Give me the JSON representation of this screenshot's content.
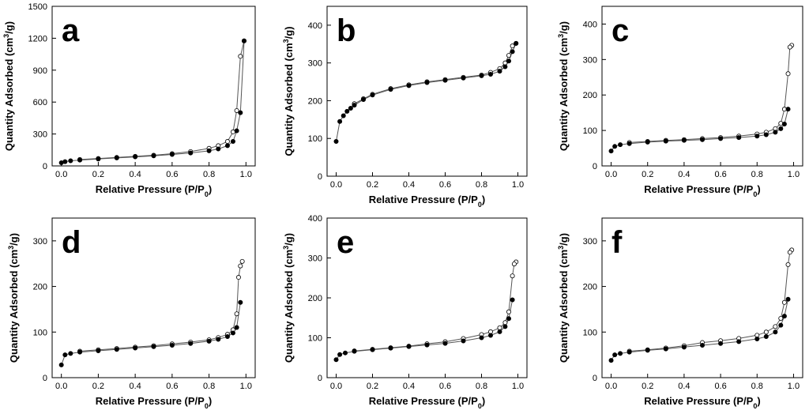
{
  "figure": {
    "description_panels": [
      "a",
      "b",
      "c",
      "d",
      "e",
      "f"
    ]
  },
  "colors": {
    "adsorption_marker": "#000000",
    "desorption_marker": "#ffffff",
    "line": "#555555",
    "frame": "#000000"
  },
  "chart_data": [
    {
      "type": "scatter",
      "panel_label": "a",
      "xlabel": "Relative Pressure (P/P0)",
      "xlabel_main": "Relative Pressure (P/P",
      "xlabel_sub": "0",
      "xlabel_close": ")",
      "ylabel": "Quantity Adsorbed (cm3/g)",
      "ylabel_main": "Quantity Adsorbed (cm",
      "ylabel_sup": "3",
      "ylabel_tail": "/g)",
      "xlim": [
        -0.05,
        1.05
      ],
      "ylim": [
        0,
        1500
      ],
      "xticks": [
        0.0,
        0.2,
        0.4,
        0.6,
        0.8,
        1.0
      ],
      "xtick_labels": [
        "0.0",
        "0.2",
        "0.4",
        "0.6",
        "0.8",
        "1.0"
      ],
      "yticks": [
        0,
        300,
        600,
        900,
        1200,
        1500
      ],
      "ytick_labels": [
        "0",
        "300",
        "600",
        "900",
        "1200",
        "1500"
      ],
      "series": [
        {
          "name": "adsorption",
          "marker": "filled",
          "x": [
            0.0,
            0.02,
            0.05,
            0.1,
            0.2,
            0.3,
            0.4,
            0.5,
            0.6,
            0.7,
            0.8,
            0.85,
            0.9,
            0.93,
            0.95,
            0.97,
            0.99
          ],
          "y": [
            30,
            40,
            48,
            55,
            65,
            75,
            85,
            95,
            108,
            122,
            142,
            160,
            190,
            230,
            330,
            500,
            1175
          ]
        },
        {
          "name": "desorption",
          "marker": "open",
          "x": [
            0.99,
            0.97,
            0.95,
            0.93,
            0.9,
            0.85,
            0.8,
            0.7,
            0.6,
            0.5,
            0.4,
            0.3,
            0.2,
            0.1
          ],
          "y": [
            1175,
            1030,
            520,
            320,
            230,
            190,
            165,
            135,
            115,
            100,
            90,
            80,
            70,
            60
          ]
        }
      ]
    },
    {
      "type": "scatter",
      "panel_label": "b",
      "xlabel": "Relative Pressure (P/P0)",
      "xlabel_main": "Relative Pressure (P/P",
      "xlabel_sub": "0",
      "xlabel_close": ")",
      "ylabel": "Quantity Adsorbed (cm3/g)",
      "ylabel_main": "Quantity Adsorbed (cm",
      "ylabel_sup": "3",
      "ylabel_tail": "/g)",
      "xlim": [
        -0.05,
        1.05
      ],
      "ylim": [
        0,
        450
      ],
      "xticks": [
        0.0,
        0.2,
        0.4,
        0.6,
        0.8,
        1.0
      ],
      "xtick_labels": [
        "0.0",
        "0.2",
        "0.4",
        "0.6",
        "0.8",
        "1.0"
      ],
      "yticks": [
        0,
        100,
        200,
        300,
        400
      ],
      "ytick_labels": [
        "0",
        "100",
        "200",
        "300",
        "400"
      ],
      "series": [
        {
          "name": "adsorption",
          "marker": "filled",
          "x": [
            0.0,
            0.02,
            0.04,
            0.06,
            0.08,
            0.1,
            0.15,
            0.2,
            0.3,
            0.4,
            0.5,
            0.6,
            0.7,
            0.8,
            0.85,
            0.9,
            0.93,
            0.95,
            0.97,
            0.99
          ],
          "y": [
            92,
            145,
            160,
            172,
            180,
            188,
            203,
            215,
            230,
            240,
            248,
            254,
            260,
            266,
            270,
            278,
            290,
            305,
            330,
            352
          ]
        },
        {
          "name": "desorption",
          "marker": "open",
          "x": [
            0.99,
            0.97,
            0.95,
            0.93,
            0.9,
            0.85,
            0.8,
            0.7,
            0.6,
            0.5,
            0.4,
            0.3,
            0.2,
            0.15,
            0.1
          ],
          "y": [
            352,
            345,
            320,
            300,
            285,
            275,
            268,
            262,
            256,
            250,
            242,
            232,
            217,
            205,
            192
          ]
        }
      ]
    },
    {
      "type": "scatter",
      "panel_label": "c",
      "xlabel": "Relative Pressure (P/P0)",
      "xlabel_main": "Relative Pressure (P/P",
      "xlabel_sub": "0",
      "xlabel_close": ")",
      "ylabel": "Quantity Adsorbed (cm3/g)",
      "ylabel_main": "Quantity Adsorbed (cm",
      "ylabel_sup": "3",
      "ylabel_tail": "/g)",
      "xlim": [
        -0.05,
        1.05
      ],
      "ylim": [
        0,
        450
      ],
      "xticks": [
        0.0,
        0.2,
        0.4,
        0.6,
        0.8,
        1.0
      ],
      "xtick_labels": [
        "0.0",
        "0.2",
        "0.4",
        "0.6",
        "0.8",
        "1.0"
      ],
      "yticks": [
        0,
        100,
        200,
        300,
        400
      ],
      "ytick_labels": [
        "0",
        "100",
        "200",
        "300",
        "400"
      ],
      "series": [
        {
          "name": "adsorption",
          "marker": "filled",
          "x": [
            0.0,
            0.02,
            0.05,
            0.1,
            0.2,
            0.3,
            0.4,
            0.5,
            0.6,
            0.7,
            0.8,
            0.85,
            0.9,
            0.93,
            0.95,
            0.97
          ],
          "y": [
            42,
            55,
            60,
            63,
            67,
            70,
            72,
            74,
            77,
            80,
            84,
            88,
            95,
            105,
            118,
            160
          ]
        },
        {
          "name": "desorption",
          "marker": "open",
          "x": [
            0.99,
            0.98,
            0.97,
            0.95,
            0.93,
            0.9,
            0.85,
            0.8,
            0.7,
            0.6,
            0.5,
            0.4,
            0.3,
            0.2,
            0.1
          ],
          "y": [
            340,
            335,
            260,
            160,
            120,
            105,
            95,
            90,
            84,
            80,
            77,
            74,
            72,
            69,
            66
          ]
        }
      ]
    },
    {
      "type": "scatter",
      "panel_label": "d",
      "xlabel": "Relative Pressure (P/P0)",
      "xlabel_main": "Relative Pressure (P/P",
      "xlabel_sub": "0",
      "xlabel_close": ")",
      "ylabel": "Quantity Adsorbed (cm3/g)",
      "ylabel_main": "Quantity Adsorbed (cm",
      "ylabel_sup": "3",
      "ylabel_tail": "/g)",
      "xlim": [
        -0.05,
        1.05
      ],
      "ylim": [
        0,
        350
      ],
      "xticks": [
        0.0,
        0.2,
        0.4,
        0.6,
        0.8,
        1.0
      ],
      "xtick_labels": [
        "0.0",
        "0.2",
        "0.4",
        "0.6",
        "0.8",
        "1.0"
      ],
      "yticks": [
        0,
        100,
        200,
        300
      ],
      "ytick_labels": [
        "0",
        "100",
        "200",
        "300"
      ],
      "series": [
        {
          "name": "adsorption",
          "marker": "filled",
          "x": [
            0.0,
            0.02,
            0.05,
            0.1,
            0.2,
            0.3,
            0.4,
            0.5,
            0.6,
            0.7,
            0.8,
            0.85,
            0.9,
            0.93,
            0.95,
            0.97
          ],
          "y": [
            28,
            50,
            53,
            56,
            59,
            62,
            65,
            68,
            71,
            75,
            80,
            84,
            90,
            98,
            110,
            165
          ]
        },
        {
          "name": "desorption",
          "marker": "open",
          "x": [
            0.98,
            0.97,
            0.96,
            0.95,
            0.93,
            0.9,
            0.85,
            0.8,
            0.7,
            0.6,
            0.5,
            0.4,
            0.3,
            0.2,
            0.1
          ],
          "y": [
            255,
            245,
            220,
            140,
            105,
            95,
            88,
            83,
            78,
            74,
            70,
            67,
            64,
            61,
            58
          ]
        }
      ]
    },
    {
      "type": "scatter",
      "panel_label": "e",
      "xlabel": "Relative Pressure (P/P0)",
      "xlabel_main": "Relative Pressure (P/P",
      "xlabel_sub": "0",
      "xlabel_close": ")",
      "ylabel": "Quantity Adsorbed (cm3/g)",
      "ylabel_main": "Quantity Adsorbed (cm",
      "ylabel_sup": "3",
      "ylabel_tail": "/g)",
      "xlim": [
        -0.05,
        1.05
      ],
      "ylim": [
        0,
        400
      ],
      "xticks": [
        0.0,
        0.2,
        0.4,
        0.6,
        0.8,
        1.0
      ],
      "xtick_labels": [
        "0.0",
        "0.2",
        "0.4",
        "0.6",
        "0.8",
        "1.0"
      ],
      "yticks": [
        0,
        100,
        200,
        300,
        400
      ],
      "ytick_labels": [
        "0",
        "100",
        "200",
        "300",
        "400"
      ],
      "series": [
        {
          "name": "adsorption",
          "marker": "filled",
          "x": [
            0.0,
            0.02,
            0.05,
            0.1,
            0.2,
            0.3,
            0.4,
            0.5,
            0.6,
            0.7,
            0.8,
            0.85,
            0.9,
            0.93,
            0.95,
            0.97
          ],
          "y": [
            45,
            58,
            62,
            66,
            70,
            74,
            78,
            82,
            86,
            92,
            100,
            106,
            115,
            128,
            148,
            195
          ]
        },
        {
          "name": "desorption",
          "marker": "open",
          "x": [
            0.99,
            0.98,
            0.97,
            0.95,
            0.93,
            0.9,
            0.85,
            0.8,
            0.7,
            0.6,
            0.5,
            0.4,
            0.3,
            0.2,
            0.1
          ],
          "y": [
            290,
            285,
            255,
            165,
            138,
            125,
            115,
            108,
            98,
            90,
            85,
            79,
            75,
            71,
            67
          ]
        }
      ]
    },
    {
      "type": "scatter",
      "panel_label": "f",
      "xlabel": "Relative Pressure (P/P0)",
      "xlabel_main": "Relative Pressure (P/P",
      "xlabel_sub": "0",
      "xlabel_close": ")",
      "ylabel": "Quantity Adsorbed (cm3/g)",
      "ylabel_main": "Quantity Adsorbed (cm",
      "ylabel_sup": "3",
      "ylabel_tail": "/g)",
      "xlim": [
        -0.05,
        1.05
      ],
      "ylim": [
        0,
        350
      ],
      "xticks": [
        0.0,
        0.2,
        0.4,
        0.6,
        0.8,
        1.0
      ],
      "xtick_labels": [
        "0.0",
        "0.2",
        "0.4",
        "0.6",
        "0.8",
        "1.0"
      ],
      "yticks": [
        0,
        100,
        200,
        300
      ],
      "ytick_labels": [
        "0",
        "100",
        "200",
        "300"
      ],
      "series": [
        {
          "name": "adsorption",
          "marker": "filled",
          "x": [
            0.0,
            0.02,
            0.05,
            0.1,
            0.2,
            0.3,
            0.4,
            0.5,
            0.6,
            0.7,
            0.8,
            0.85,
            0.9,
            0.93,
            0.95,
            0.97
          ],
          "y": [
            38,
            50,
            53,
            56,
            60,
            63,
            67,
            71,
            75,
            79,
            85,
            90,
            100,
            115,
            135,
            172
          ]
        },
        {
          "name": "desorption",
          "marker": "open",
          "x": [
            0.99,
            0.98,
            0.97,
            0.95,
            0.93,
            0.9,
            0.85,
            0.8,
            0.7,
            0.6,
            0.5,
            0.4,
            0.3,
            0.2,
            0.1
          ],
          "y": [
            280,
            275,
            248,
            165,
            130,
            112,
            100,
            93,
            86,
            81,
            77,
            70,
            65,
            61,
            58
          ]
        }
      ]
    }
  ]
}
